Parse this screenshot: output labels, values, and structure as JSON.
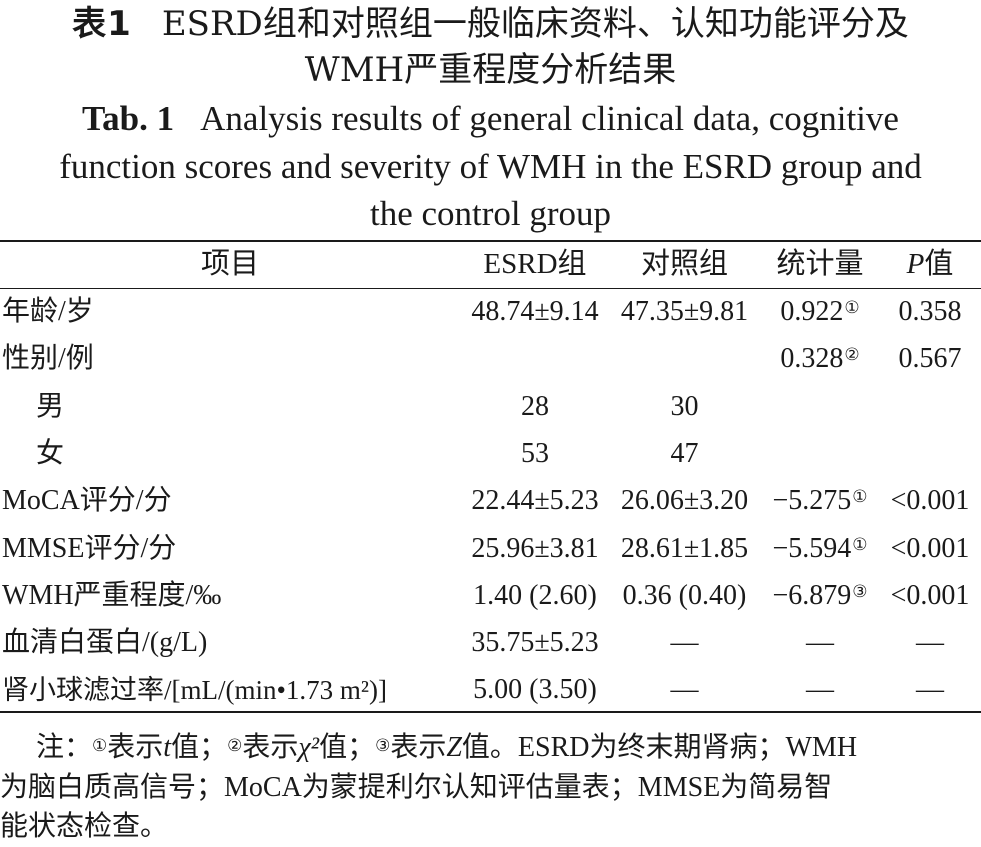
{
  "title_cn": {
    "label": "表1",
    "line1": "ESRD组和对照组一般临床资料、认知功能评分及",
    "line2": "WMH严重程度分析结果"
  },
  "title_en": {
    "label": "Tab. 1",
    "line1": "Analysis results of general clinical data, cognitive",
    "line2": "function scores and severity of WMH in the ESRD group and",
    "line3": "the control group"
  },
  "table": {
    "headers": {
      "item": "项目",
      "esrd": "ESRD组",
      "control": "对照组",
      "stat": "统计量",
      "p_italic": "P",
      "p_suffix": "值"
    },
    "rows": [
      {
        "item": "年龄/岁",
        "esrd": "48.74±9.14",
        "control": "47.35±9.81",
        "stat": "0.922",
        "stat_note": "①",
        "p": "0.358"
      },
      {
        "item": "性别/例",
        "esrd": "",
        "control": "",
        "stat": "0.328",
        "stat_note": "②",
        "p": "0.567"
      },
      {
        "item": "男",
        "esrd": "28",
        "control": "30",
        "stat": "",
        "stat_note": "",
        "p": ""
      },
      {
        "item": "女",
        "esrd": "53",
        "control": "47",
        "stat": "",
        "stat_note": "",
        "p": ""
      },
      {
        "item": "MoCA评分/分",
        "esrd": "22.44±5.23",
        "control": "26.06±3.20",
        "stat": "−5.275",
        "stat_note": "①",
        "p": "<0.001"
      },
      {
        "item": "MMSE评分/分",
        "esrd": "25.96±3.81",
        "control": "28.61±1.85",
        "stat": "−5.594",
        "stat_note": "①",
        "p": "<0.001"
      },
      {
        "item": "WMH严重程度/‰",
        "esrd": "1.40 (2.60)",
        "control": "0.36 (0.40)",
        "stat": "−6.879",
        "stat_note": "③",
        "p": "<0.001"
      },
      {
        "item": "血清白蛋白/(g/L)",
        "esrd": "35.75±5.23",
        "control": "—",
        "stat": "—",
        "stat_note": "",
        "p": "—"
      },
      {
        "item": "肾小球滤过率/[mL/(min•1.73 m²)]",
        "esrd": "5.00 (3.50)",
        "control": "—",
        "stat": "—",
        "stat_note": "",
        "p": "—"
      }
    ]
  },
  "note": {
    "prefix": "注：",
    "m1": "①",
    "t1a": "表示",
    "t1var": "t",
    "t1b": "值；",
    "m2": "②",
    "t2a": "表示",
    "t2var": "χ²",
    "t2b": "值；",
    "m3": "③",
    "t3a": "表示",
    "t3var": "Z",
    "t3b": "值。ESRD为终末期肾病；WMH",
    "line2": "为脑白质高信号；MoCA为蒙提利尔认知评估量表；MMSE为简易智",
    "line3": "能状态检查。"
  }
}
